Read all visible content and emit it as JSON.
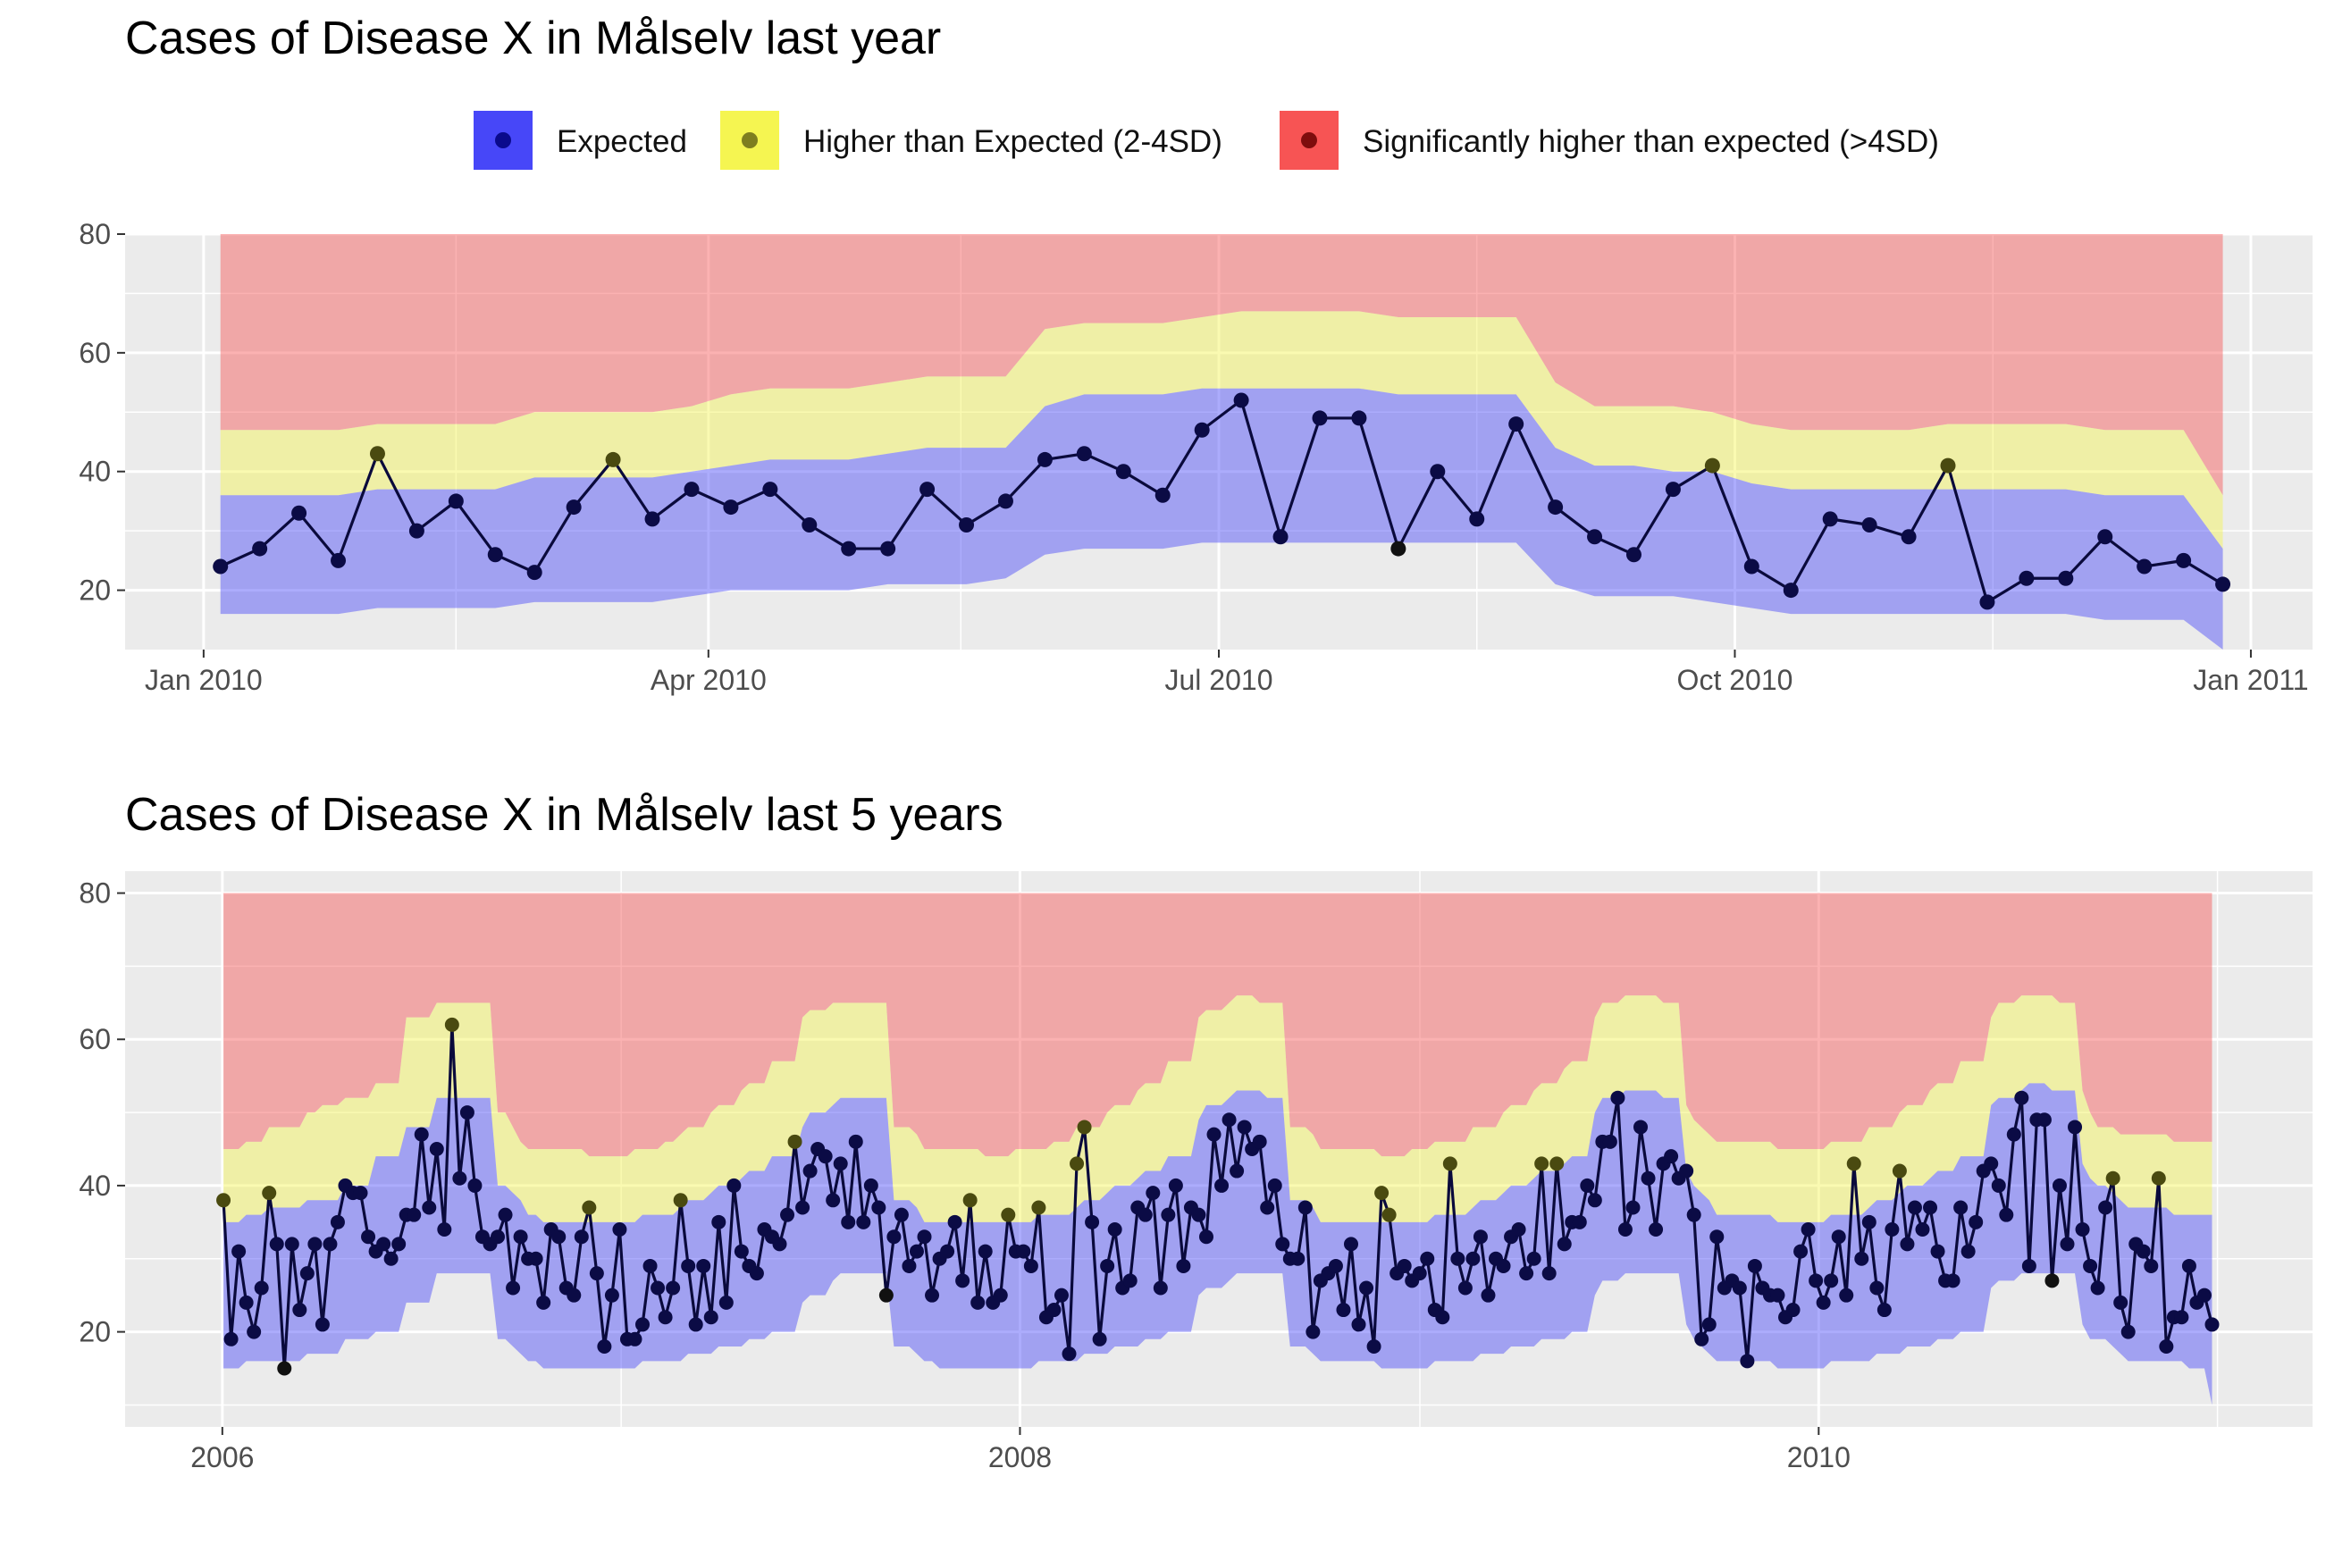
{
  "colors": {
    "expected": "#4747F8",
    "higher": "#F5F551",
    "significant": "#F75454",
    "panel_bg": "#EBEBEB",
    "line": "#0A0A3C"
  },
  "legend": {
    "expected": "Expected",
    "higher": "Higher than Expected (2-4SD)",
    "significant": "Significantly higher than expected (>4SD)"
  },
  "chart_data": [
    {
      "type": "line",
      "title": "Cases of Disease X in Målselv last year",
      "xlabel": "",
      "ylabel": "",
      "ylim": [
        10,
        80
      ],
      "y_ticks": [
        "20",
        "40",
        "60",
        "80"
      ],
      "x_ticks": [
        "Jan 2010",
        "Apr 2010",
        "Jul 2010",
        "Oct 2010",
        "Jan 2011"
      ],
      "x_start": "2010-01-04",
      "x_end": "2010-12-27",
      "weeks": 52,
      "cases": [
        24,
        27,
        33,
        25,
        43,
        30,
        35,
        26,
        23,
        34,
        42,
        32,
        37,
        34,
        37,
        31,
        27,
        27,
        37,
        31,
        35,
        42,
        43,
        40,
        36,
        47,
        52,
        29,
        49,
        49,
        27,
        40,
        32,
        48,
        34,
        29,
        26,
        37,
        41,
        24,
        20,
        32,
        31,
        29,
        41,
        18,
        22,
        22,
        29,
        24,
        25,
        21
      ],
      "threshold_low": [
        16,
        16,
        16,
        16,
        17,
        17,
        17,
        17,
        18,
        18,
        18,
        18,
        19,
        20,
        20,
        20,
        20,
        21,
        21,
        21,
        22,
        26,
        27,
        27,
        27,
        28,
        28,
        28,
        28,
        28,
        28,
        28,
        28,
        28,
        21,
        19,
        19,
        19,
        18,
        17,
        16,
        16,
        16,
        16,
        16,
        16,
        16,
        16,
        15,
        15,
        15,
        10
      ],
      "threshold_2sd": [
        36,
        36,
        36,
        36,
        37,
        37,
        37,
        37,
        39,
        39,
        39,
        39,
        40,
        41,
        42,
        42,
        42,
        43,
        44,
        44,
        44,
        51,
        53,
        53,
        53,
        54,
        54,
        54,
        54,
        54,
        53,
        53,
        53,
        53,
        44,
        41,
        41,
        40,
        40,
        38,
        37,
        37,
        37,
        37,
        37,
        37,
        37,
        37,
        36,
        36,
        36,
        27
      ],
      "threshold_4sd": [
        47,
        47,
        47,
        47,
        48,
        48,
        48,
        48,
        50,
        50,
        50,
        50,
        51,
        53,
        54,
        54,
        54,
        55,
        56,
        56,
        56,
        64,
        65,
        65,
        65,
        66,
        67,
        67,
        67,
        67,
        66,
        66,
        66,
        66,
        55,
        51,
        51,
        51,
        50,
        48,
        47,
        47,
        47,
        47,
        48,
        48,
        48,
        48,
        47,
        47,
        47,
        36
      ],
      "y_top": 80,
      "status": [
        0,
        0,
        0,
        0,
        1,
        0,
        0,
        0,
        0,
        0,
        1,
        0,
        0,
        0,
        0,
        0,
        0,
        0,
        0,
        0,
        0,
        0,
        0,
        0,
        0,
        0,
        0,
        0,
        0,
        0,
        0,
        0,
        0,
        0,
        0,
        0,
        0,
        0,
        1,
        0,
        0,
        0,
        0,
        0,
        1,
        0,
        0,
        0,
        0,
        0,
        0,
        0
      ]
    },
    {
      "type": "line",
      "title": "Cases of Disease X in Målselv last 5 years",
      "xlabel": "",
      "ylabel": "",
      "ylim": [
        7,
        83
      ],
      "y_ticks": [
        "20",
        "40",
        "60",
        "80"
      ],
      "x_ticks": [
        "2006",
        "2008",
        "2010"
      ],
      "x_start": "2006-01-02",
      "x_end": "2010-12-27",
      "weeks": 261,
      "cases": [
        38,
        19,
        31,
        24,
        20,
        26,
        39,
        32,
        15,
        32,
        23,
        28,
        32,
        21,
        32,
        35,
        40,
        39,
        39,
        33,
        31,
        32,
        30,
        32,
        36,
        36,
        47,
        37,
        45,
        34,
        62,
        41,
        50,
        40,
        33,
        32,
        33,
        36,
        26,
        33,
        30,
        30,
        24,
        34,
        33,
        26,
        25,
        33,
        37,
        28,
        18,
        25,
        34,
        19,
        19,
        21,
        29,
        26,
        22,
        26,
        38,
        29,
        21,
        29,
        22,
        35,
        24,
        40,
        31,
        29,
        28,
        34,
        33,
        32,
        36,
        46,
        37,
        42,
        45,
        44,
        38,
        43,
        35,
        46,
        35,
        40,
        37,
        25,
        33,
        36,
        29,
        31,
        33,
        25,
        30,
        31,
        35,
        27,
        38,
        24,
        31,
        24,
        25,
        36,
        31,
        31,
        29,
        37,
        22,
        23,
        25,
        17,
        43,
        48,
        35,
        19,
        29,
        34,
        26,
        27,
        37,
        36,
        39,
        26,
        36,
        40,
        29,
        37,
        36,
        33,
        47,
        40,
        49,
        42,
        48,
        45,
        46,
        37,
        40,
        32,
        30,
        30,
        37,
        20,
        27,
        28,
        29,
        23,
        32,
        21,
        26,
        18,
        39,
        36,
        28,
        29,
        27,
        28,
        30,
        23,
        22,
        43,
        30,
        26,
        30,
        33,
        25,
        30,
        29,
        33,
        34,
        28,
        30,
        43,
        28,
        43,
        32,
        35,
        35,
        40,
        38,
        46,
        46,
        52,
        34,
        37,
        48,
        41,
        34,
        43,
        44,
        41,
        42,
        36,
        19,
        21,
        33,
        26,
        27,
        26,
        16,
        29,
        26,
        25,
        25,
        22,
        23,
        31,
        34,
        27,
        24,
        27,
        33,
        25,
        43,
        30,
        35,
        26,
        23,
        34,
        42,
        32,
        37,
        34,
        37,
        31,
        27,
        27,
        37,
        31,
        35,
        42,
        43,
        40,
        36,
        47,
        52,
        29,
        49,
        49,
        27,
        40,
        32,
        48,
        34,
        29,
        26,
        37,
        41,
        24,
        20,
        32,
        31,
        29,
        41,
        18,
        22,
        22,
        29,
        24,
        25,
        21
      ],
      "threshold_low": [
        15,
        15,
        15,
        16,
        16,
        16,
        16,
        16,
        16,
        16,
        16,
        17,
        17,
        17,
        17,
        17,
        19,
        19,
        19,
        19,
        20,
        20,
        20,
        20,
        24,
        24,
        24,
        24,
        28,
        28,
        28,
        28,
        28,
        28,
        28,
        28,
        19,
        19,
        18,
        17,
        16,
        16,
        15,
        15,
        15,
        15,
        15,
        15,
        15,
        15,
        15,
        15,
        15,
        15,
        15,
        16,
        16,
        16,
        16,
        16,
        16,
        17,
        17,
        17,
        17,
        18,
        18,
        18,
        18,
        19,
        19,
        19,
        20,
        20,
        20,
        20,
        24,
        25,
        25,
        25,
        27,
        28,
        28,
        28,
        28,
        28,
        28,
        28,
        18,
        18,
        18,
        17,
        16,
        16,
        15,
        15,
        15,
        15,
        15,
        15,
        15,
        15,
        15,
        15,
        15,
        15,
        15,
        16,
        16,
        16,
        16,
        16,
        16,
        17,
        17,
        17,
        17,
        18,
        18,
        18,
        18,
        19,
        19,
        19,
        20,
        20,
        20,
        20,
        25,
        26,
        26,
        26,
        27,
        28,
        28,
        28,
        28,
        28,
        28,
        28,
        18,
        18,
        18,
        17,
        16,
        16,
        16,
        16,
        16,
        16,
        16,
        16,
        15,
        15,
        15,
        15,
        15,
        15,
        15,
        16,
        16,
        16,
        16,
        16,
        16,
        17,
        17,
        17,
        17,
        18,
        18,
        18,
        18,
        19,
        19,
        19,
        19,
        20,
        20,
        20,
        25,
        27,
        27,
        27,
        28,
        28,
        28,
        28,
        28,
        28,
        28,
        28,
        21,
        19,
        18,
        17,
        16,
        16,
        16,
        16,
        16,
        16,
        16,
        16,
        15,
        15,
        15,
        15,
        15,
        15,
        15,
        16,
        16,
        16,
        16,
        16,
        16,
        17,
        17,
        17,
        17,
        18,
        18,
        18,
        18,
        19,
        19,
        19,
        20,
        20,
        20,
        20,
        26,
        27,
        27,
        27,
        28,
        28,
        28,
        28,
        28,
        28,
        28,
        28,
        21,
        19,
        19,
        19,
        18,
        17,
        16,
        16,
        16,
        16,
        16,
        16,
        16,
        16,
        15,
        15,
        15,
        10
      ],
      "threshold_2sd": [
        35,
        35,
        35,
        36,
        36,
        36,
        37,
        37,
        37,
        37,
        37,
        38,
        38,
        38,
        38,
        38,
        40,
        40,
        40,
        40,
        44,
        44,
        44,
        44,
        48,
        48,
        48,
        48,
        52,
        52,
        52,
        52,
        52,
        52,
        52,
        52,
        40,
        40,
        39,
        38,
        36,
        36,
        35,
        35,
        35,
        35,
        35,
        35,
        35,
        35,
        35,
        35,
        35,
        35,
        35,
        36,
        36,
        36,
        36,
        36,
        37,
        38,
        38,
        38,
        39,
        40,
        40,
        40,
        41,
        42,
        42,
        42,
        44,
        44,
        44,
        44,
        48,
        50,
        50,
        50,
        51,
        52,
        52,
        52,
        52,
        52,
        52,
        52,
        38,
        38,
        38,
        37,
        35,
        35,
        35,
        35,
        35,
        35,
        35,
        35,
        35,
        35,
        35,
        35,
        35,
        35,
        35,
        36,
        36,
        36,
        36,
        36,
        37,
        38,
        38,
        38,
        39,
        40,
        40,
        40,
        41,
        42,
        42,
        42,
        44,
        44,
        44,
        44,
        49,
        51,
        51,
        51,
        52,
        53,
        53,
        53,
        53,
        52,
        52,
        52,
        38,
        38,
        38,
        37,
        35,
        35,
        35,
        35,
        35,
        35,
        35,
        35,
        35,
        35,
        35,
        35,
        35,
        35,
        35,
        36,
        36,
        36,
        36,
        36,
        37,
        38,
        38,
        38,
        39,
        40,
        40,
        40,
        41,
        42,
        42,
        42,
        43,
        44,
        44,
        44,
        50,
        52,
        52,
        52,
        53,
        53,
        53,
        53,
        53,
        52,
        52,
        52,
        42,
        40,
        39,
        38,
        36,
        36,
        36,
        36,
        36,
        36,
        36,
        36,
        35,
        35,
        35,
        35,
        35,
        35,
        35,
        36,
        36,
        36,
        36,
        36,
        37,
        38,
        38,
        38,
        39,
        40,
        40,
        40,
        41,
        42,
        42,
        42,
        44,
        44,
        44,
        44,
        51,
        52,
        52,
        52,
        53,
        54,
        54,
        54,
        53,
        53,
        53,
        53,
        43,
        41,
        40,
        40,
        39,
        38,
        37,
        37,
        37,
        37,
        37,
        37,
        36,
        36,
        36,
        36,
        36,
        36,
        27
      ],
      "threshold_4sd": [
        45,
        45,
        45,
        46,
        46,
        46,
        48,
        48,
        48,
        48,
        48,
        50,
        50,
        51,
        51,
        51,
        52,
        52,
        52,
        52,
        54,
        54,
        54,
        54,
        63,
        63,
        63,
        63,
        65,
        65,
        65,
        65,
        65,
        65,
        65,
        65,
        50,
        50,
        48,
        46,
        45,
        45,
        45,
        45,
        45,
        45,
        45,
        45,
        44,
        44,
        44,
        44,
        44,
        44,
        45,
        45,
        45,
        45,
        46,
        46,
        47,
        48,
        48,
        48,
        50,
        51,
        51,
        51,
        53,
        54,
        54,
        54,
        57,
        57,
        57,
        57,
        63,
        64,
        64,
        64,
        65,
        65,
        65,
        65,
        65,
        65,
        65,
        65,
        48,
        48,
        48,
        47,
        45,
        45,
        45,
        45,
        45,
        45,
        45,
        45,
        44,
        44,
        44,
        44,
        45,
        45,
        45,
        45,
        45,
        46,
        46,
        46,
        48,
        48,
        48,
        48,
        50,
        51,
        51,
        51,
        53,
        54,
        54,
        54,
        57,
        57,
        57,
        57,
        63,
        64,
        64,
        64,
        65,
        66,
        66,
        66,
        65,
        65,
        65,
        65,
        48,
        48,
        48,
        47,
        45,
        45,
        45,
        45,
        45,
        45,
        45,
        45,
        44,
        44,
        44,
        44,
        45,
        45,
        45,
        46,
        46,
        46,
        46,
        46,
        48,
        48,
        48,
        48,
        50,
        51,
        51,
        51,
        53,
        54,
        54,
        54,
        56,
        57,
        57,
        57,
        63,
        65,
        65,
        65,
        66,
        66,
        66,
        66,
        66,
        65,
        65,
        65,
        51,
        49,
        48,
        47,
        46,
        46,
        46,
        46,
        46,
        46,
        46,
        46,
        45,
        45,
        45,
        45,
        45,
        45,
        45,
        46,
        46,
        46,
        46,
        46,
        48,
        48,
        48,
        48,
        50,
        51,
        51,
        51,
        53,
        54,
        54,
        54,
        57,
        57,
        57,
        57,
        63,
        65,
        65,
        65,
        66,
        66,
        66,
        66,
        66,
        65,
        65,
        65,
        53,
        50,
        48,
        48,
        48,
        47,
        47,
        47,
        47,
        47,
        47,
        47,
        46,
        46,
        46,
        46,
        46,
        46,
        36
      ],
      "y_top": 80,
      "status": []
    }
  ]
}
